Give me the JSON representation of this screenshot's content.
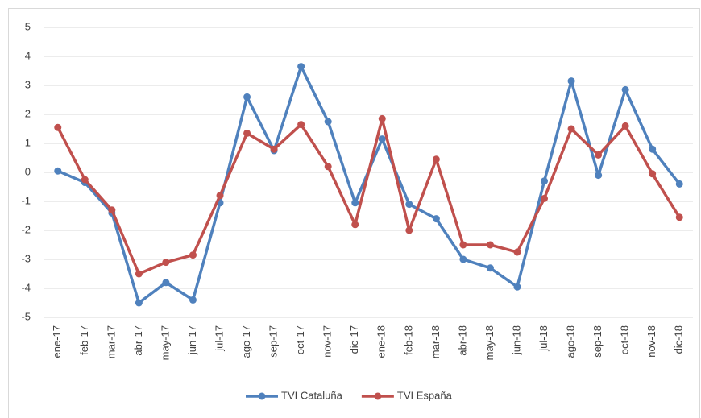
{
  "chart_data": {
    "type": "line",
    "categories": [
      "ene-17",
      "feb-17",
      "mar-17",
      "abr-17",
      "may-17",
      "jun-17",
      "jul-17",
      "ago-17",
      "sep-17",
      "oct-17",
      "nov-17",
      "dic-17",
      "ene-18",
      "feb-18",
      "mar-18",
      "abr-18",
      "may-18",
      "jun-18",
      "jul-18",
      "ago-18",
      "sep-18",
      "oct-18",
      "nov-18",
      "dic-18"
    ],
    "series": [
      {
        "name": "TVI Cataluña",
        "color": "#4f81bd",
        "values": [
          0.05,
          -0.35,
          -1.4,
          -4.5,
          -3.8,
          -4.4,
          -1.05,
          2.6,
          0.75,
          3.65,
          1.75,
          -1.05,
          1.15,
          -1.1,
          -1.6,
          -3.0,
          -3.3,
          -3.95,
          -0.3,
          3.15,
          -0.1,
          2.85,
          0.8,
          -0.4
        ]
      },
      {
        "name": "TVI España",
        "color": "#c0504d",
        "values": [
          1.55,
          -0.25,
          -1.3,
          -3.5,
          -3.1,
          -2.85,
          -0.8,
          1.35,
          0.8,
          1.65,
          0.2,
          -1.8,
          1.85,
          -2.0,
          0.45,
          -2.5,
          -2.5,
          -2.75,
          -0.9,
          1.5,
          0.6,
          1.6,
          -0.05,
          -1.55
        ]
      }
    ],
    "ylim": [
      -5,
      5
    ],
    "yticks": [
      -5,
      -4,
      -3,
      -2,
      -1,
      0,
      1,
      2,
      3,
      4,
      5
    ],
    "grid": true,
    "legend": "bottom"
  }
}
